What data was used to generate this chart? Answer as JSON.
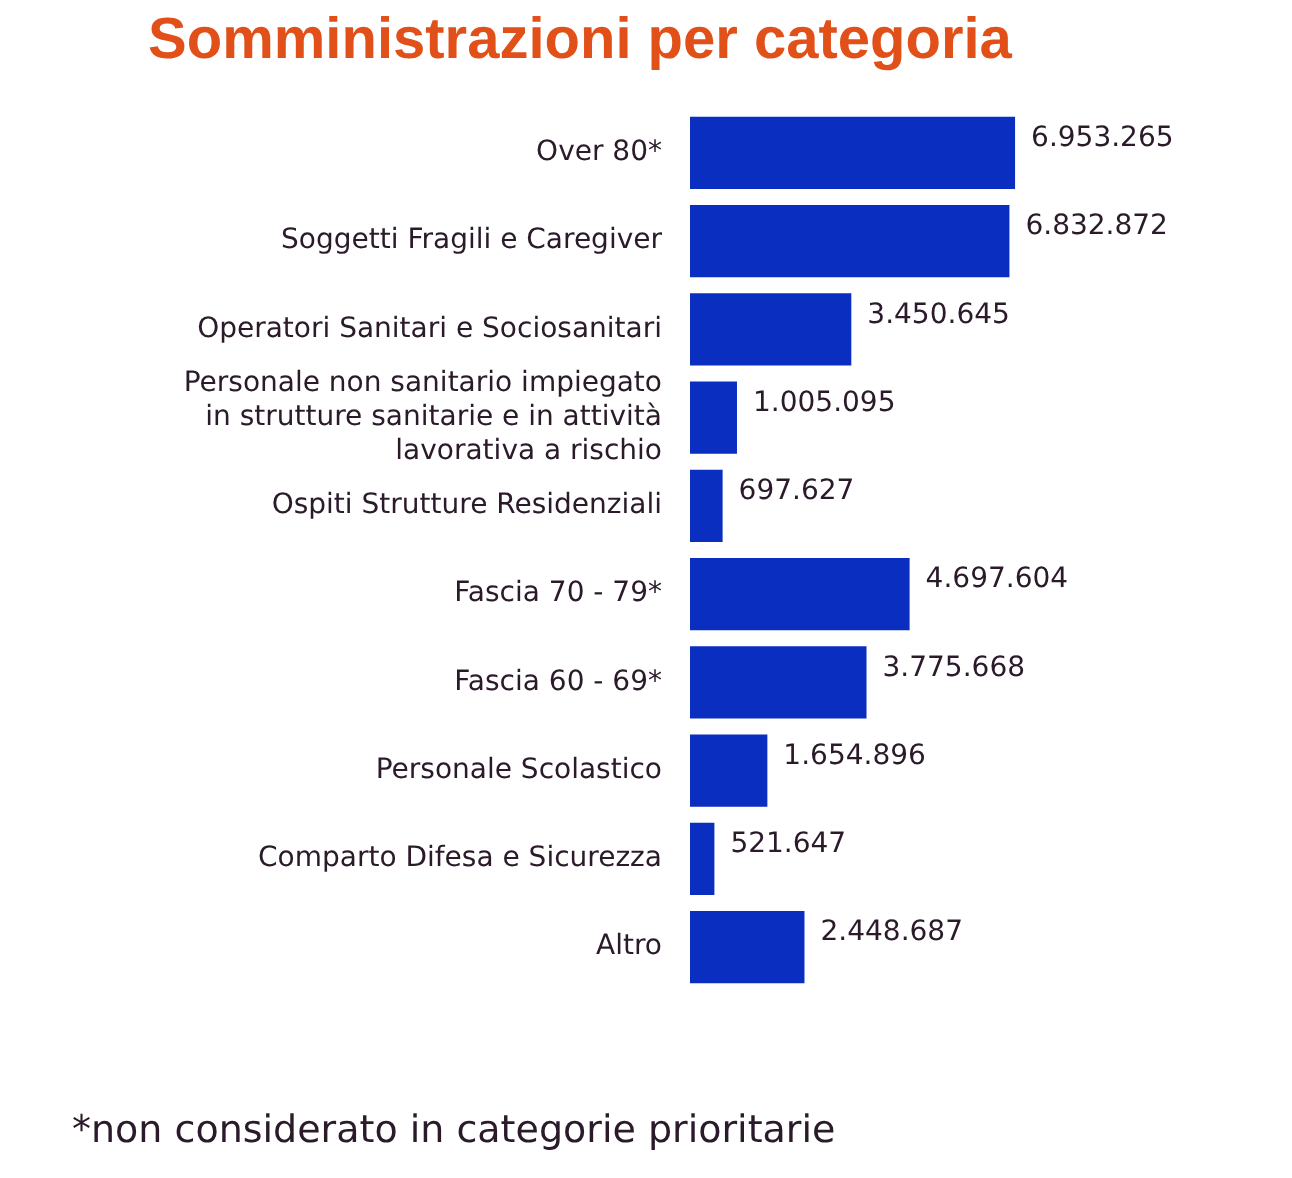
{
  "chart_data": {
    "type": "bar",
    "orientation": "horizontal",
    "title": "Somministrazioni per categoria",
    "categories": [
      "Over 80*",
      "Soggetti Fragili e Caregiver",
      "Operatori Sanitari e Sociosanitari",
      "Personale non sanitario impiegato\nin strutture sanitarie e in attività\nlavorativa a rischio",
      "Ospiti Strutture Residenziali",
      "Fascia 70 - 79*",
      "Fascia 60 - 69*",
      "Personale Scolastico",
      "Comparto Difesa e Sicurezza",
      "Altro"
    ],
    "values": [
      6953265,
      6832872,
      3450645,
      1005095,
      697627,
      4697604,
      3775668,
      1654896,
      521647,
      2448687
    ],
    "value_labels": [
      "6.953.265",
      "6.832.872",
      "3.450.645",
      "1.005.095",
      "697.627",
      "4.697.604",
      "3.775.668",
      "1.654.896",
      "521.647",
      "2.448.687"
    ],
    "color": "#0a2ebf",
    "tick_labels": "y",
    "annotations": [
      "*non considerato in categorie prioritarie"
    ]
  }
}
